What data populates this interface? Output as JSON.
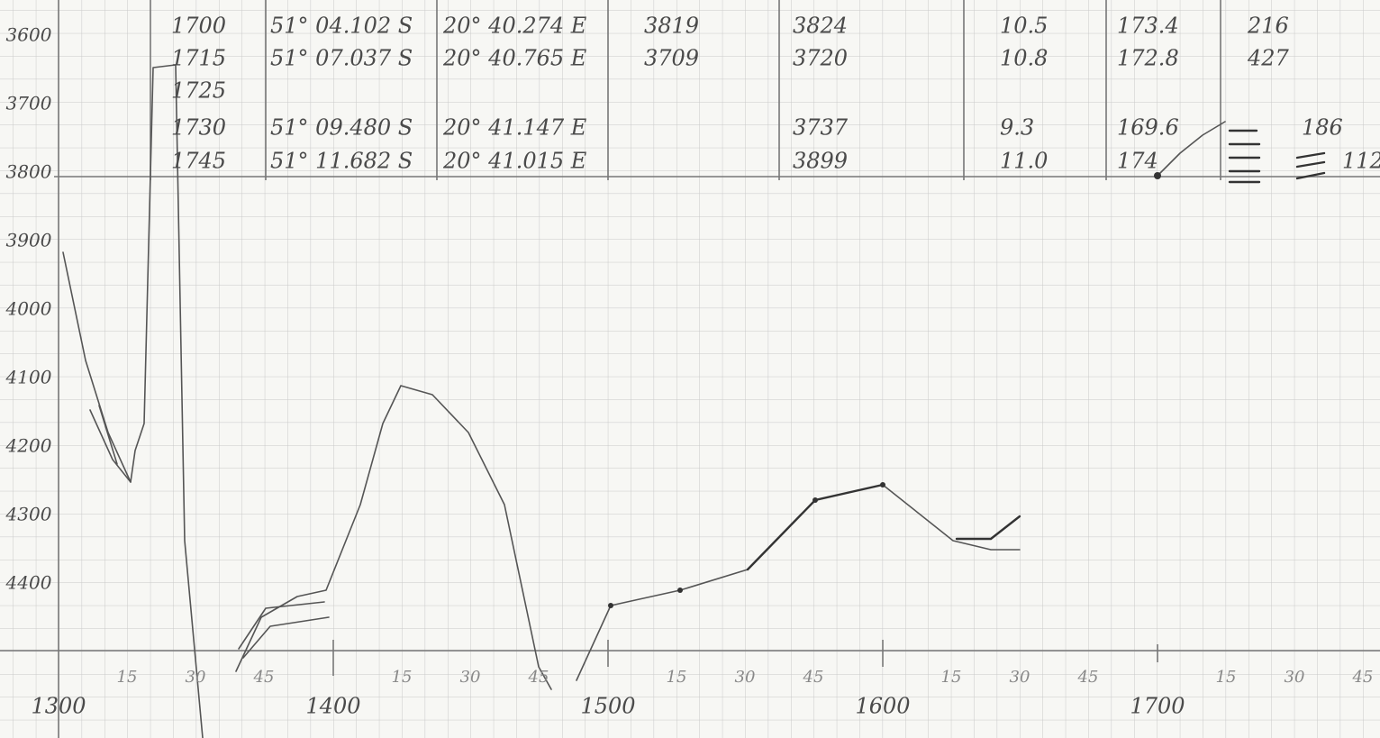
{
  "table": {
    "rows": [
      {
        "time": "1700",
        "lat": "51° 04.102 S",
        "lon": "20° 40.274 E",
        "depth1": "3819",
        "depth2": "3824",
        "speed": "10.5",
        "heading": "173.4",
        "extra": "216"
      },
      {
        "time": "1715",
        "lat": "51° 07.037 S",
        "lon": "20° 40.765 E",
        "depth1": "3709",
        "depth2": "3720",
        "speed": "10.8",
        "heading": "172.8",
        "extra": "427"
      },
      {
        "time": "1725"
      },
      {
        "time": "1730",
        "lat": "51° 09.480 S",
        "lon": "20° 41.147 E",
        "depth2": "3737",
        "speed": "9.3",
        "heading": "169.6",
        "extra": "186"
      },
      {
        "time": "1745",
        "lat": "51° 11.682 S",
        "lon": "20° 41.015 E",
        "depth2": "3899",
        "speed": "11.0",
        "heading": "174",
        "extra": "112"
      }
    ]
  },
  "y_labels": [
    "3600",
    "3700",
    "3800",
    "3900",
    "4000",
    "4100",
    "4200",
    "4300",
    "4400"
  ],
  "x_minor_labels": [
    "15",
    "30",
    "45",
    "15",
    "30",
    "45",
    "15",
    "30",
    "45",
    "15",
    "30",
    "45",
    "15",
    "30",
    "45"
  ],
  "hour_labels": [
    "1300",
    "1400",
    "1500",
    "1600",
    "1700"
  ]
}
